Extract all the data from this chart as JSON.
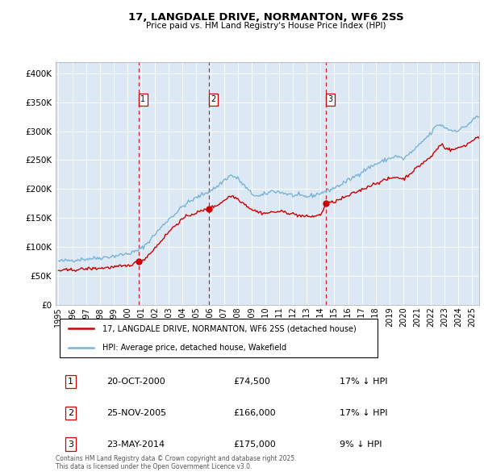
{
  "title": "17, LANGDALE DRIVE, NORMANTON, WF6 2SS",
  "subtitle": "Price paid vs. HM Land Registry's House Price Index (HPI)",
  "plot_bg_color": "#dce9f5",
  "red_line_color": "#cc0000",
  "blue_line_color": "#7ab3d4",
  "vline_color": "#cc0000",
  "purchases": [
    {
      "num": 1,
      "date_x": 2000.81,
      "price": 74500,
      "label": "20-OCT-2000",
      "price_str": "£74,500",
      "pct": "17% ↓ HPI"
    },
    {
      "num": 2,
      "date_x": 2005.9,
      "price": 166000,
      "label": "25-NOV-2005",
      "price_str": "£166,000",
      "pct": "17% ↓ HPI"
    },
    {
      "num": 3,
      "date_x": 2014.4,
      "price": 175000,
      "label": "23-MAY-2014",
      "price_str": "£175,000",
      "pct": "9% ↓ HPI"
    }
  ],
  "legend_red": "17, LANGDALE DRIVE, NORMANTON, WF6 2SS (detached house)",
  "legend_blue": "HPI: Average price, detached house, Wakefield",
  "footer": "Contains HM Land Registry data © Crown copyright and database right 2025.\nThis data is licensed under the Open Government Licence v3.0.",
  "ylim": [
    0,
    420000
  ],
  "yticks": [
    0,
    50000,
    100000,
    150000,
    200000,
    250000,
    300000,
    350000,
    400000
  ],
  "xlim": [
    1994.8,
    2025.5
  ],
  "xtick_years": [
    1995,
    1996,
    1997,
    1998,
    1999,
    2000,
    2001,
    2002,
    2003,
    2004,
    2005,
    2006,
    2007,
    2008,
    2009,
    2010,
    2011,
    2012,
    2013,
    2014,
    2015,
    2016,
    2017,
    2018,
    2019,
    2020,
    2021,
    2022,
    2023,
    2024,
    2025
  ]
}
